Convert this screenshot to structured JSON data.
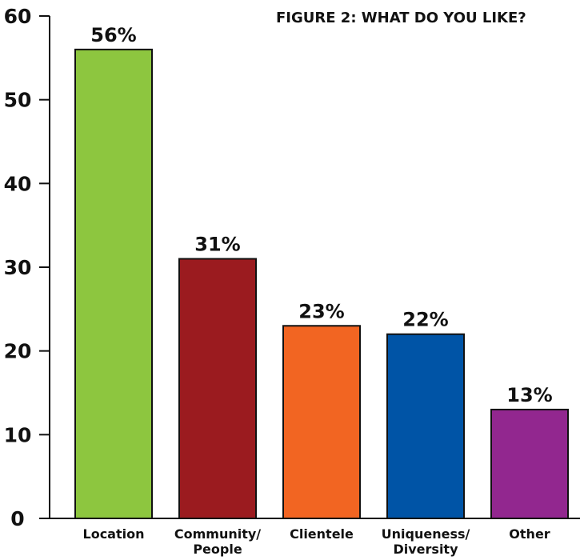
{
  "chart_data": {
    "type": "bar",
    "title": "FIGURE 2: WHAT DO YOU LIKE?",
    "xlabel": "",
    "ylabel": "",
    "ylim": [
      0,
      60
    ],
    "yticks": [
      0,
      10,
      20,
      30,
      40,
      50,
      60
    ],
    "categories": [
      [
        "Location"
      ],
      [
        "Community/",
        "People"
      ],
      [
        "Clientele"
      ],
      [
        "Uniqueness/",
        "Diversity"
      ],
      [
        "Other"
      ]
    ],
    "values": [
      56,
      31,
      23,
      22,
      13
    ],
    "value_labels": [
      "56%",
      "31%",
      "23%",
      "22%",
      "13%"
    ],
    "colors": [
      "#8dc63f",
      "#9b1b1f",
      "#f26522",
      "#0054a6",
      "#92278f"
    ],
    "grid": false,
    "legend": "none"
  }
}
